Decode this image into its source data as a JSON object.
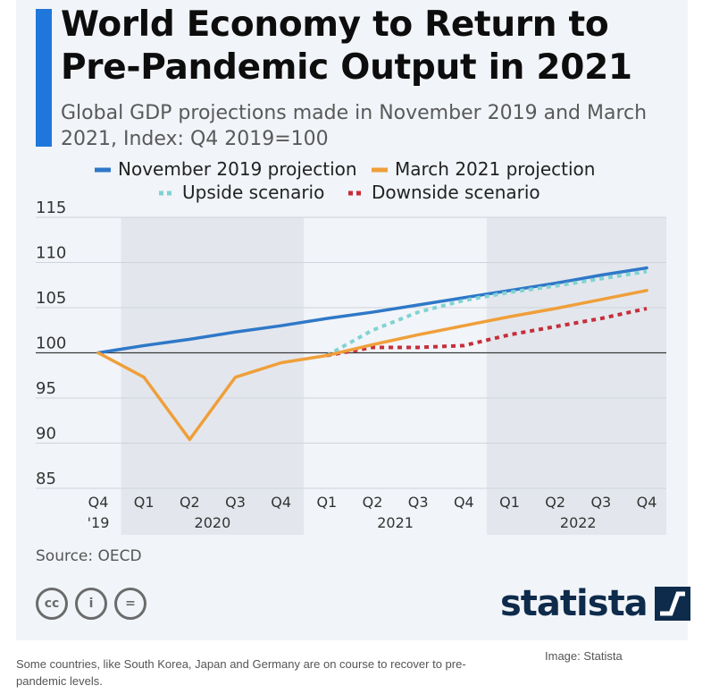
{
  "header": {
    "title": "World Economy to Return to Pre-Pandemic Output in 2021",
    "subtitle": "Global GDP projections made in November 2019 and March 2021, Index: Q4 2019=100"
  },
  "footer": {
    "source": "Source: OECD",
    "logo_text": "statista",
    "license_icons": [
      "cc-icon",
      "attribution-icon",
      "no-derivatives-icon"
    ],
    "license_glyphs": [
      "cc",
      "i",
      "="
    ]
  },
  "caption": "Some countries, like South Korea, Japan and Germany are on course to recover to pre-pandemic levels.",
  "credit": "Image: Statista",
  "colors": {
    "nov2019": "#2f78c8",
    "mar2021": "#ef9f3a",
    "upside": "#7fd3d3",
    "downside": "#c62e3b",
    "band": "#e3e7ed",
    "grid": "#cfd4da",
    "baseline": "#3a3a3a"
  },
  "chart_data": {
    "type": "line",
    "title": "World Economy to Return to Pre-Pandemic Output in 2021",
    "x": [
      "Q4",
      "Q1",
      "Q2",
      "Q3",
      "Q4",
      "Q1",
      "Q2",
      "Q3",
      "Q4",
      "Q1",
      "Q2",
      "Q3",
      "Q4"
    ],
    "year_labels": [
      {
        "label": "'19",
        "at": 0
      },
      {
        "label": "2020",
        "at": 2.5
      },
      {
        "label": "2021",
        "at": 6.5
      },
      {
        "label": "2022",
        "at": 10.5
      }
    ],
    "shaded_bands": [
      [
        0.5,
        4.5
      ],
      [
        8.5,
        12.5
      ]
    ],
    "ylim": [
      85,
      115
    ],
    "yticks": [
      85,
      90,
      95,
      100,
      105,
      110,
      115
    ],
    "grid": true,
    "legend_position": "top",
    "series": [
      {
        "name": "November 2019 projection",
        "style": "solid",
        "values": [
          100,
          100.8,
          101.5,
          102.3,
          103.0,
          103.8,
          104.5,
          105.3,
          106.1,
          106.9,
          107.7,
          108.6,
          109.4
        ]
      },
      {
        "name": "March 2021 projection",
        "style": "solid",
        "values": [
          100,
          97.3,
          90.4,
          97.3,
          98.9,
          99.7,
          100.9,
          102.0,
          103.0,
          104.0,
          104.9,
          105.9,
          106.9
        ]
      },
      {
        "name": "Upside scenario",
        "style": "dotted",
        "values": [
          null,
          null,
          null,
          null,
          null,
          99.7,
          102.5,
          104.5,
          105.8,
          106.7,
          107.4,
          108.2,
          109.0
        ]
      },
      {
        "name": "Downside scenario",
        "style": "dotted",
        "values": [
          null,
          null,
          null,
          null,
          null,
          99.7,
          100.6,
          100.6,
          100.8,
          102.0,
          102.9,
          103.8,
          104.9
        ]
      }
    ]
  }
}
